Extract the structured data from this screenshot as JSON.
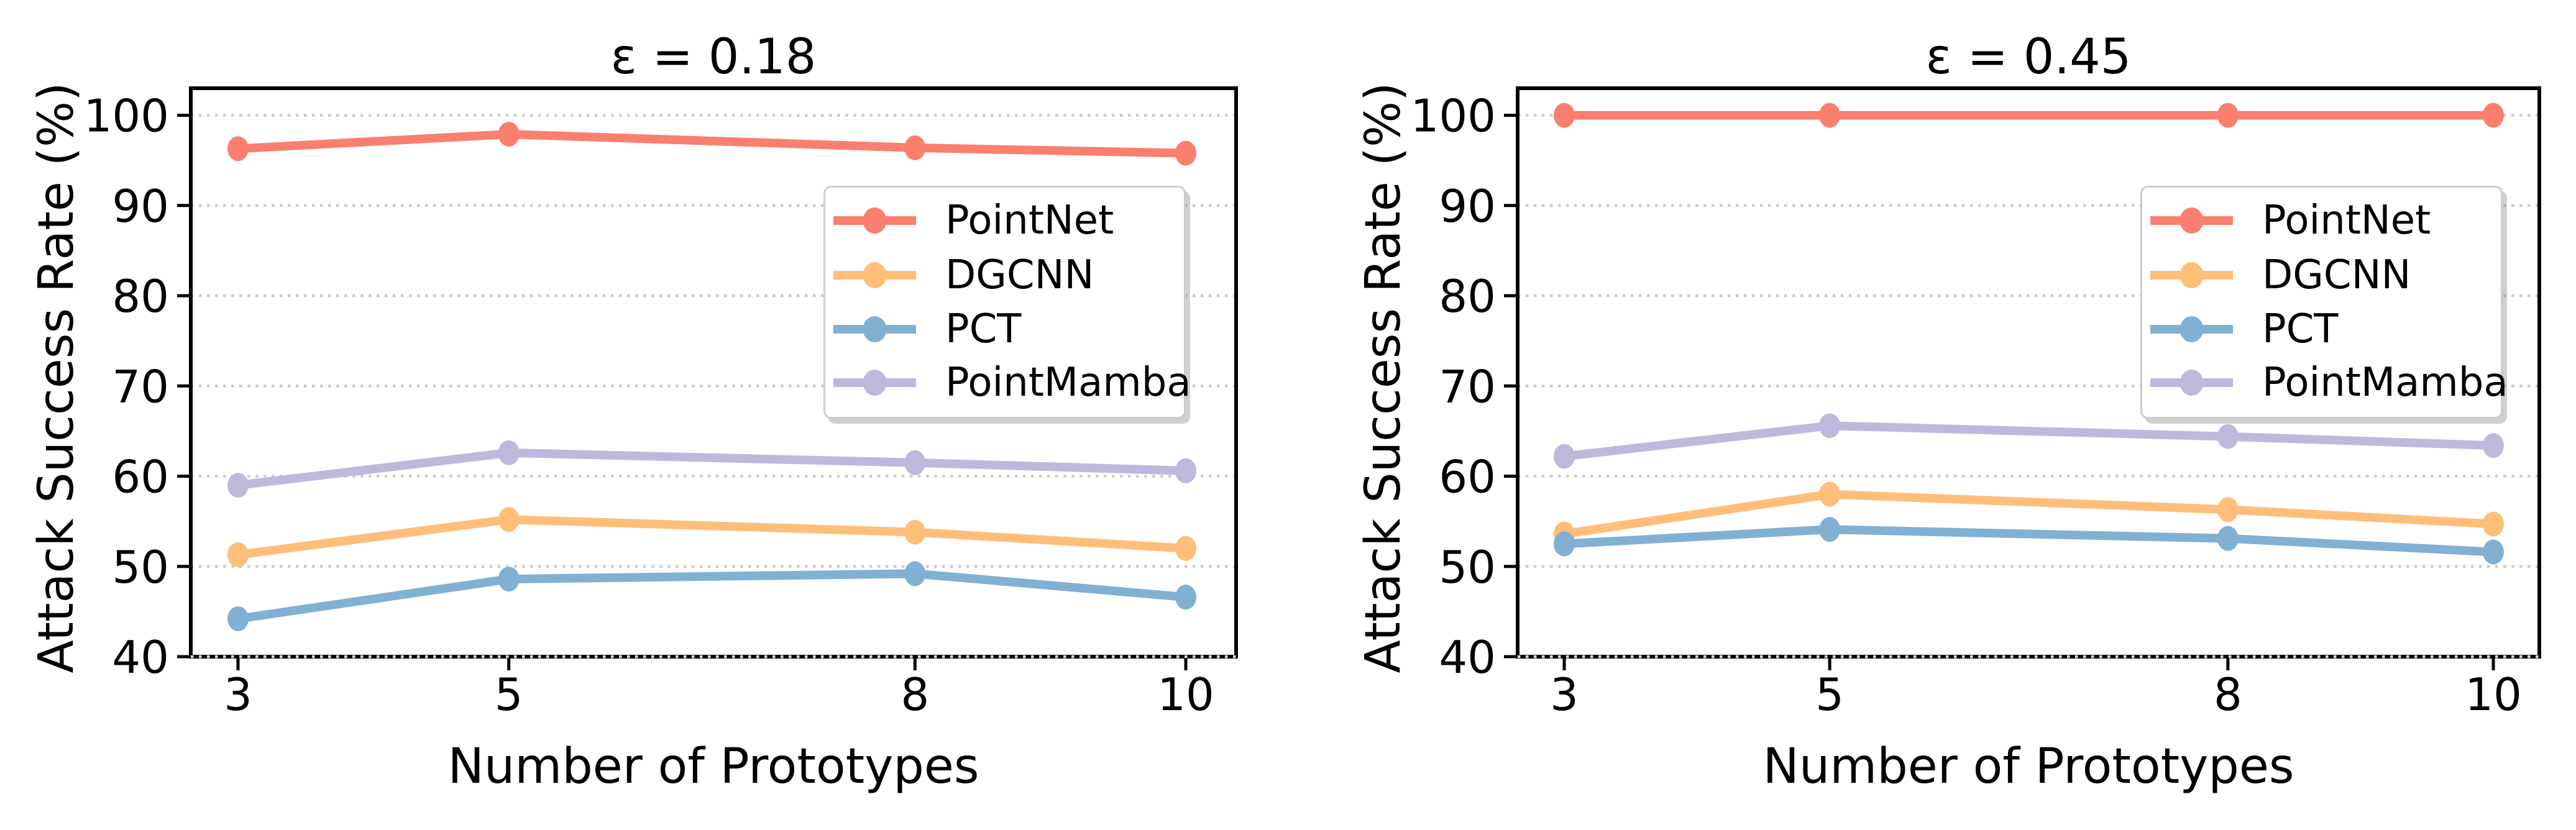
{
  "figure": {
    "background": "#ffffff",
    "text_color": "#000000",
    "grid_color": "#cbcbcb",
    "spine_color": "#000000",
    "legend_border_color": "#cccccc"
  },
  "chart_data": [
    {
      "type": "line",
      "title": "ε = 0.18",
      "xlabel": "Number of Prototypes",
      "ylabel": "Attack Success Rate (%)",
      "x": [
        3,
        5,
        8,
        10
      ],
      "xtick_labels": [
        "3",
        "5",
        "8",
        "10"
      ],
      "ylim": [
        40,
        103
      ],
      "yticks": [
        40,
        50,
        60,
        70,
        80,
        90,
        100
      ],
      "grid": "horizontal-dotted",
      "legend_position": "upper-right",
      "series": [
        {
          "name": "PointNet",
          "color": "#FA7F6F",
          "values": [
            96.3,
            97.9,
            96.4,
            95.8
          ]
        },
        {
          "name": "DGCNN",
          "color": "#FFBE7A",
          "values": [
            51.3,
            55.2,
            53.8,
            52.0
          ]
        },
        {
          "name": "PCT",
          "color": "#82B0D2",
          "values": [
            44.2,
            48.6,
            49.2,
            46.6
          ]
        },
        {
          "name": "PointMamba",
          "color": "#BEB8DC",
          "values": [
            59.0,
            62.6,
            61.5,
            60.6
          ]
        }
      ]
    },
    {
      "type": "line",
      "title": "ε = 0.45",
      "xlabel": "Number of Prototypes",
      "ylabel": "Attack Success Rate (%)",
      "x": [
        3,
        5,
        8,
        10
      ],
      "xtick_labels": [
        "3",
        "5",
        "8",
        "10"
      ],
      "ylim": [
        40,
        103
      ],
      "yticks": [
        40,
        50,
        60,
        70,
        80,
        90,
        100
      ],
      "grid": "horizontal-dotted",
      "legend_position": "upper-right",
      "series": [
        {
          "name": "PointNet",
          "color": "#FA7F6F",
          "values": [
            100,
            100,
            100,
            100
          ]
        },
        {
          "name": "DGCNN",
          "color": "#FFBE7A",
          "values": [
            53.6,
            58.0,
            56.3,
            54.7
          ]
        },
        {
          "name": "PCT",
          "color": "#82B0D2",
          "values": [
            52.5,
            54.1,
            53.1,
            51.6
          ]
        },
        {
          "name": "PointMamba",
          "color": "#BEB8DC",
          "values": [
            62.2,
            65.6,
            64.4,
            63.4
          ]
        }
      ]
    }
  ]
}
